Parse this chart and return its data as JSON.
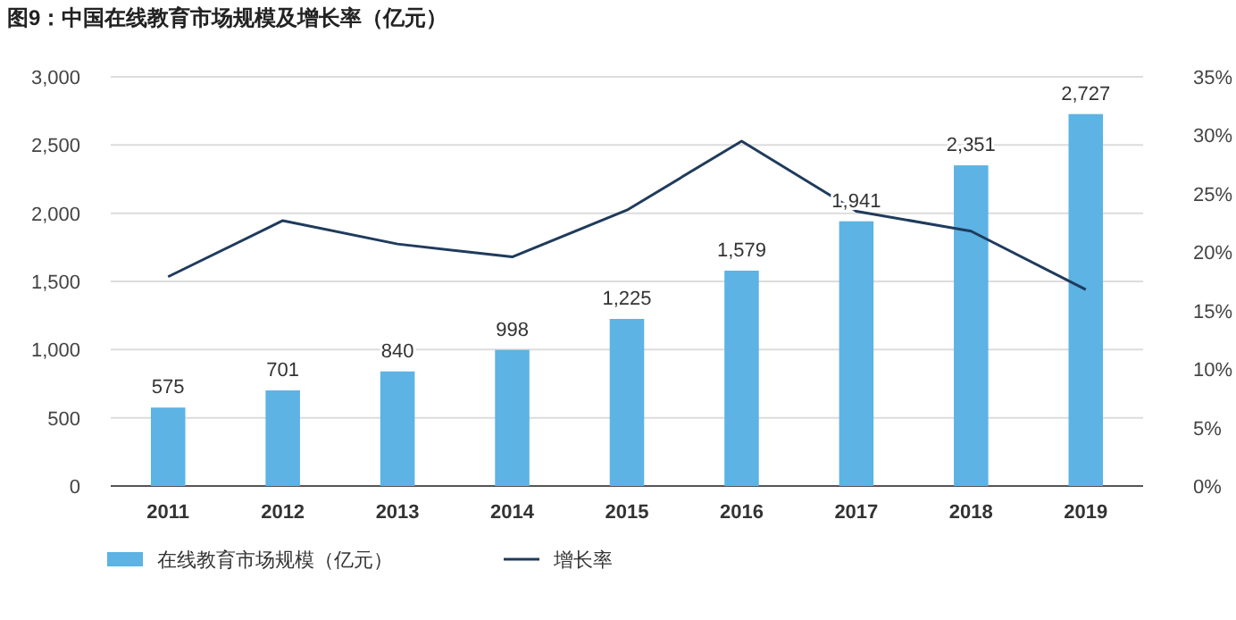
{
  "chart_data": {
    "type": "bar",
    "title": "图9：中国在线教育市场规模及增长率（亿元）",
    "categories": [
      "2011",
      "2012",
      "2013",
      "2014",
      "2015",
      "2016",
      "2017",
      "2018",
      "2019"
    ],
    "series": [
      {
        "name": "在线教育市场规模（亿元）",
        "color": "#5cb3e4",
        "values": [
          575,
          701,
          840,
          998,
          1225,
          1579,
          1941,
          2351,
          2727
        ],
        "value_labels": [
          "575",
          "701",
          "840",
          "998",
          "1,225",
          "1,579",
          "1,941",
          "2,351",
          "2,727"
        ]
      },
      {
        "name": "增长率",
        "type": "line",
        "axis": "y2",
        "color": "#1f3b5c",
        "values": [
          17.9,
          22.7,
          20.7,
          19.6,
          23.6,
          29.5,
          23.5,
          21.8,
          16.8
        ]
      }
    ],
    "ylim": [
      0,
      3000
    ],
    "yticks": [
      0,
      {
        "value": 500,
        "label": "500"
      },
      {
        "value": 1000,
        "label": "1,000"
      },
      {
        "value": 1500,
        "label": "1,500"
      },
      {
        "value": 2000,
        "label": "2,000"
      },
      {
        "value": 2500,
        "label": "2,500"
      },
      {
        "value": 3000,
        "label": "3,000"
      }
    ],
    "y2lim": [
      0,
      35
    ],
    "y2ticks": [
      {
        "value": 0,
        "label": "0%"
      },
      {
        "value": 5,
        "label": "5%"
      },
      {
        "value": 10,
        "label": "10%"
      },
      {
        "value": 15,
        "label": "15%"
      },
      {
        "value": 20,
        "label": "20%"
      },
      {
        "value": 25,
        "label": "25%"
      },
      {
        "value": 30,
        "label": "30%"
      },
      {
        "value": 35,
        "label": "35%"
      }
    ],
    "grid": "y",
    "legend": "bottom"
  }
}
